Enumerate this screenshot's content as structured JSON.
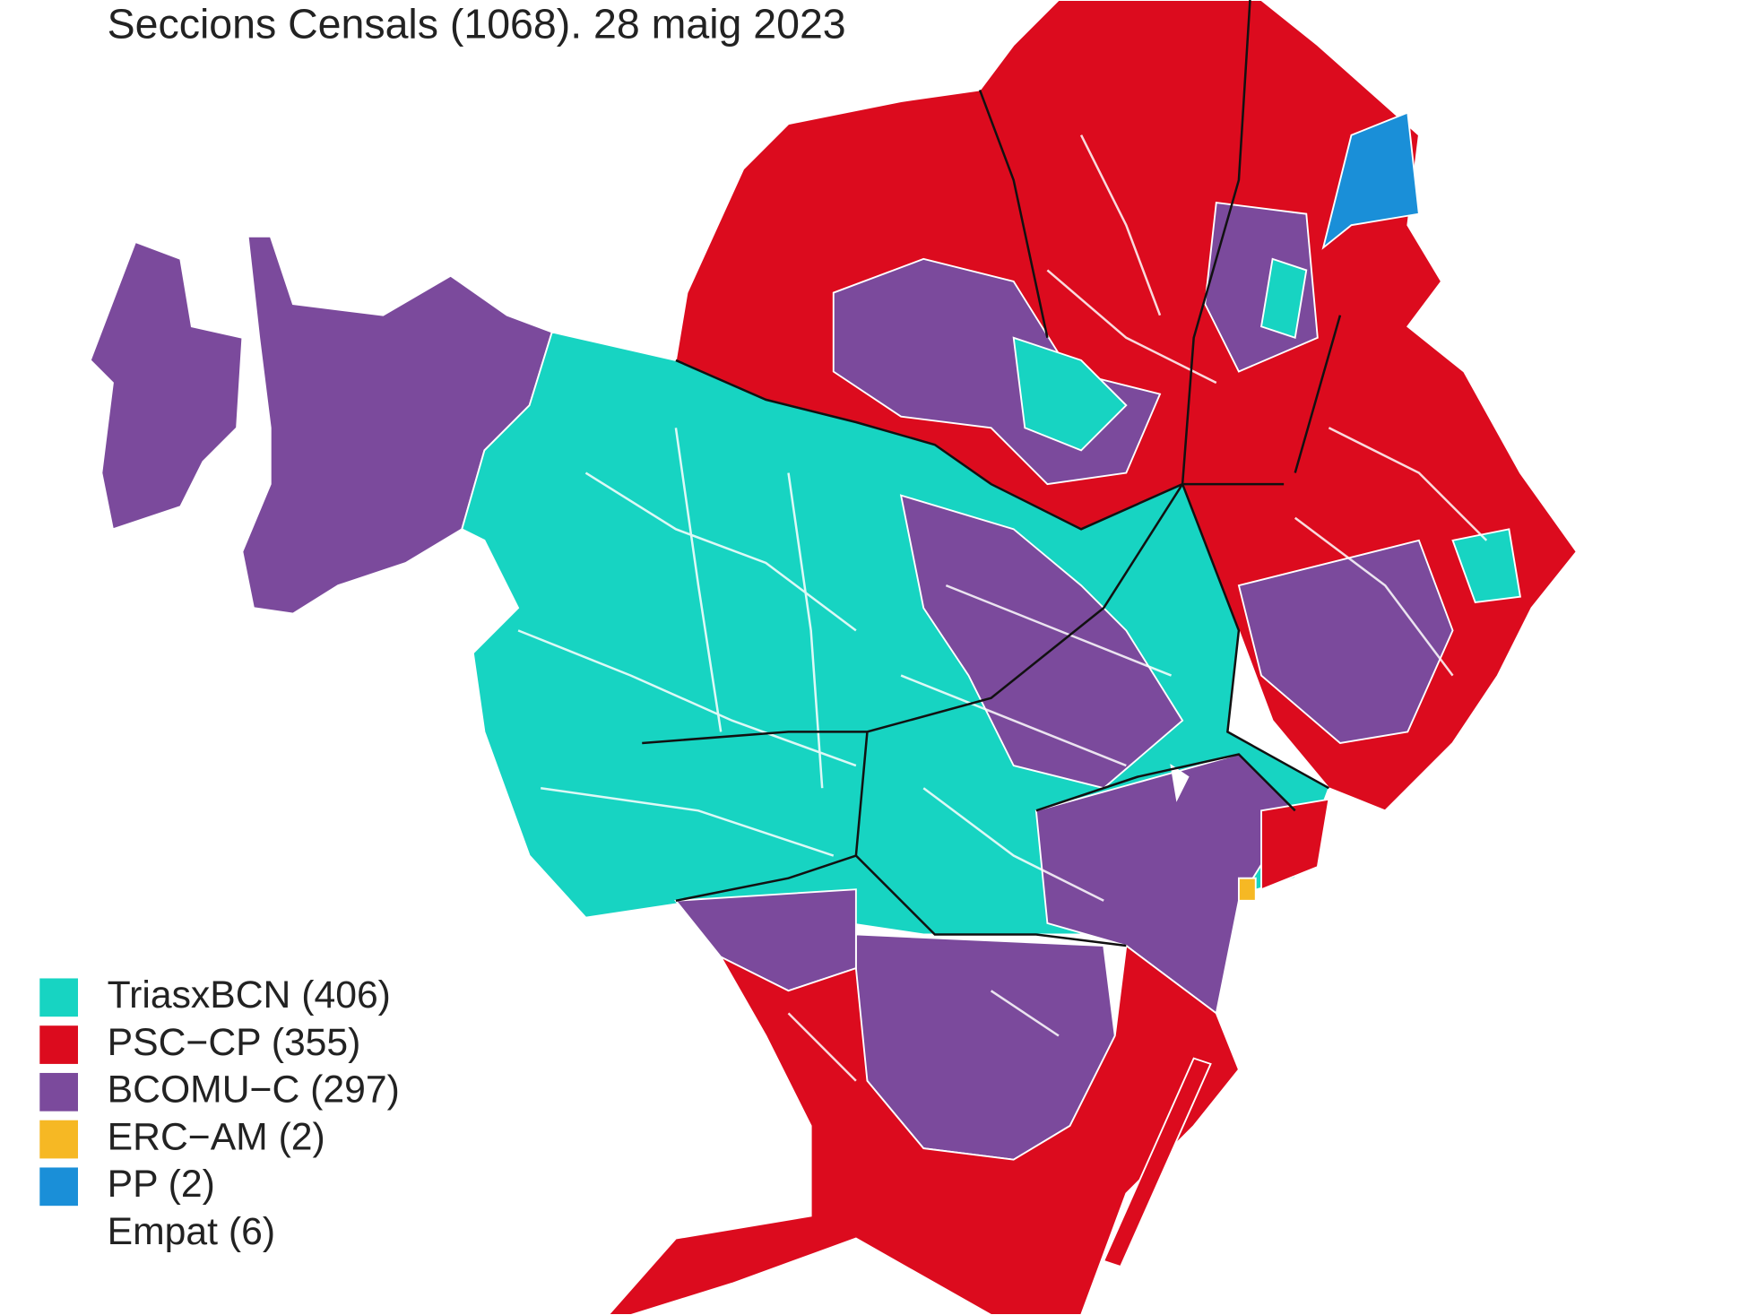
{
  "title": "Seccions Censals (1068). 28 maig 2023",
  "legend": [
    {
      "label": "TriasxBCN (406)",
      "color": "#17d4c2"
    },
    {
      "label": "PSC−CP (355)",
      "color": "#dc0b1e"
    },
    {
      "label": "BCOMU−C (297)",
      "color": "#7b4a9c"
    },
    {
      "label": "ERC−AM (2)",
      "color": "#f6b824"
    },
    {
      "label": "PP (2)",
      "color": "#1a8fd8"
    },
    {
      "label": "Empat (6)",
      "color": "#ffffff"
    }
  ]
}
